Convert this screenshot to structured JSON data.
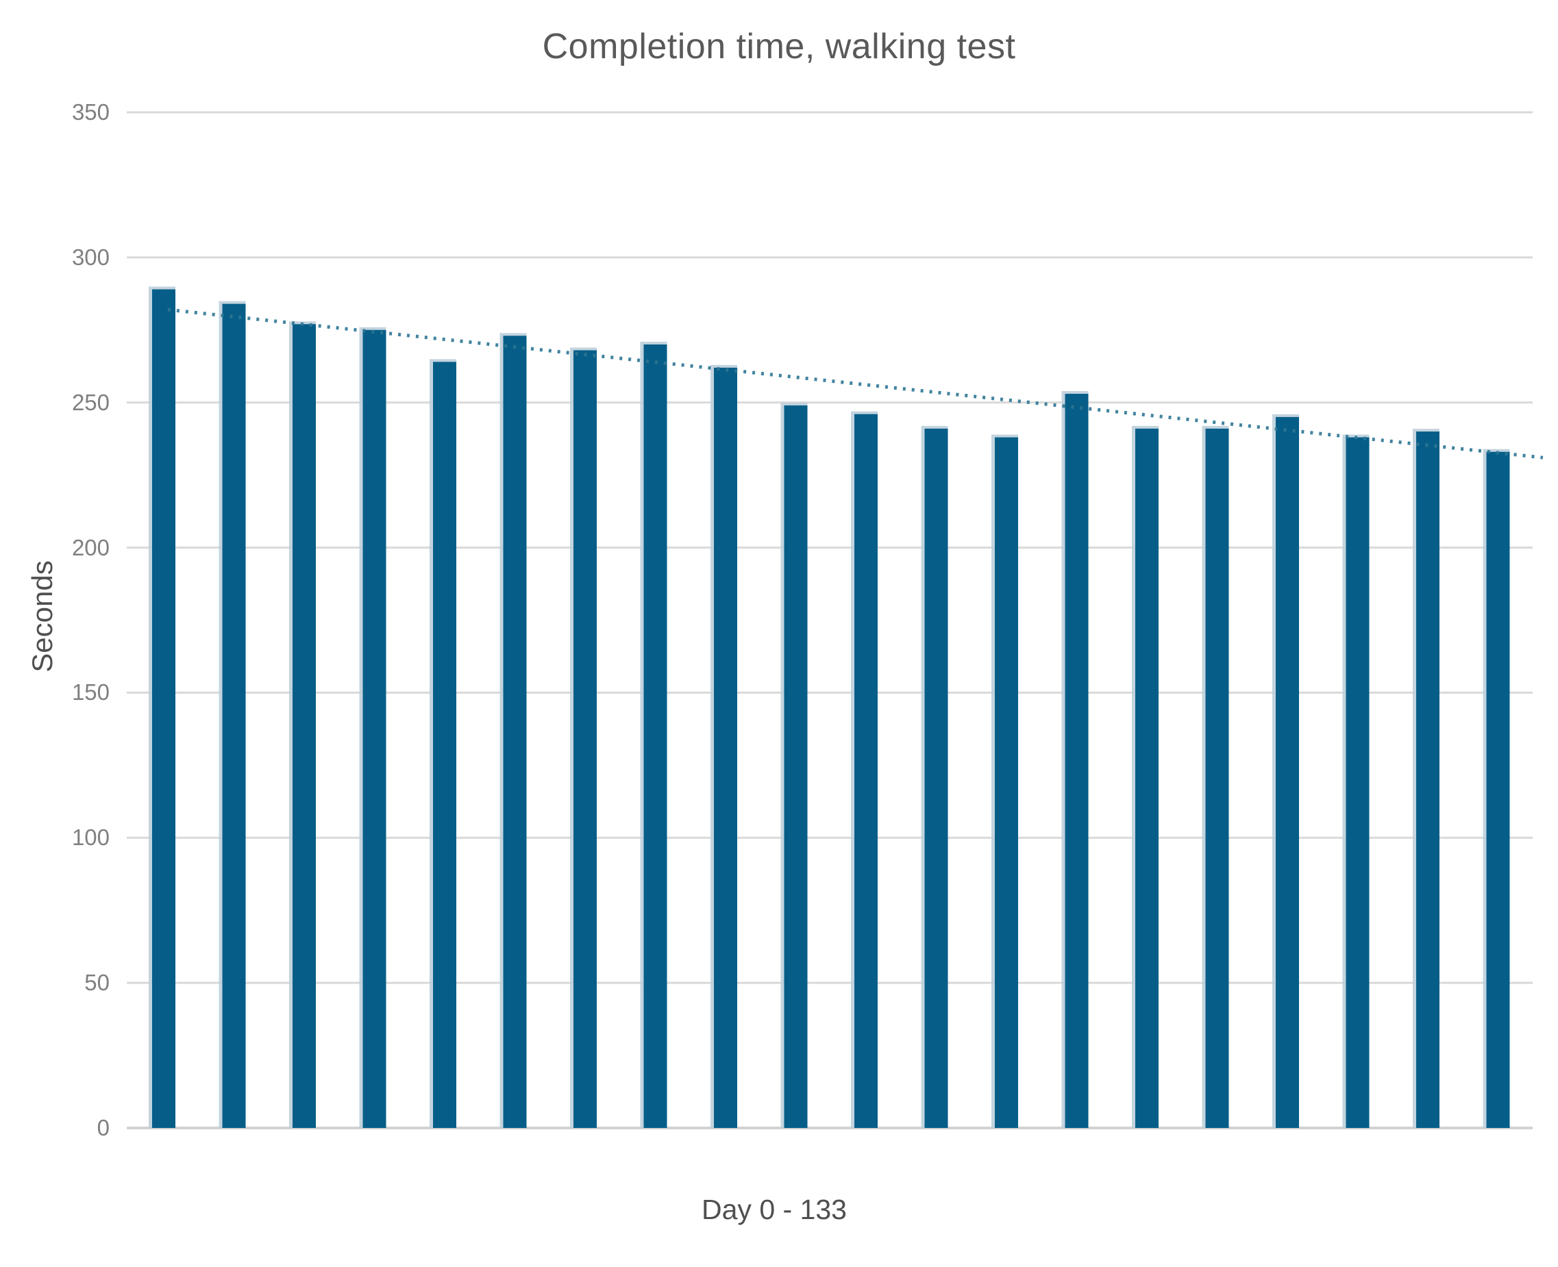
{
  "chart_data": {
    "type": "bar",
    "title": "Completion time, walking test",
    "xlabel": "Day 0 - 133",
    "ylabel": "Seconds",
    "ylim": [
      0,
      350
    ],
    "yticks": [
      350,
      300,
      250,
      200,
      150,
      100,
      50,
      0
    ],
    "grid": true,
    "legend": false,
    "x_tick_labels_visible": false,
    "n_bars": 20,
    "values": [
      289,
      284,
      277,
      275,
      264,
      273,
      268,
      270,
      262,
      249,
      246,
      241,
      238,
      253,
      241,
      241,
      245,
      238,
      240,
      233
    ],
    "trendline": {
      "style": "dotted",
      "start_value": 282,
      "end_value": 231
    },
    "colors": {
      "bar": "#065e88",
      "bar_edge_halo": "#b9cdd9",
      "gridline": "#d9d9d9",
      "baseline": "#d2d2d2",
      "trendline": "#2e7595",
      "title_text": "#595959",
      "tick_text": "#7f7f7f",
      "axis_title_text": "#4f4f4f"
    }
  }
}
